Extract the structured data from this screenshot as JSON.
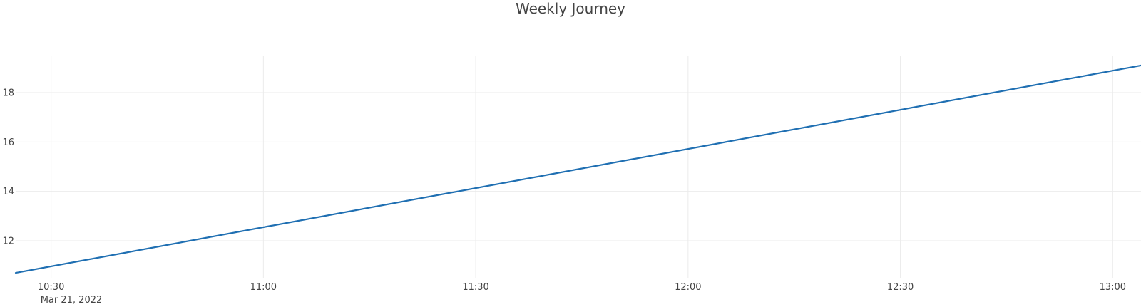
{
  "chart_data": {
    "type": "line",
    "title": "Weekly Journey",
    "xlabel": "",
    "ylabel": "",
    "x_type": "time",
    "x_ticks": [
      {
        "time": "10:30",
        "label": "10:30"
      },
      {
        "time": "11:00",
        "label": "11:00"
      },
      {
        "time": "11:30",
        "label": "11:30"
      },
      {
        "time": "12:00",
        "label": "12:00"
      },
      {
        "time": "12:30",
        "label": "12:30"
      },
      {
        "time": "13:00",
        "label": "13:00"
      }
    ],
    "x_date_label": "Mar 21, 2022",
    "y_ticks": [
      12,
      14,
      16,
      18
    ],
    "xlim": [
      "10:25",
      "13:04"
    ],
    "ylim": [
      10.5,
      19.5
    ],
    "grid": true,
    "legend": "none",
    "series": [
      {
        "color": "#1f6fb2",
        "x": [
          "10:25",
          "13:04"
        ],
        "y": [
          10.7,
          19.1
        ]
      }
    ]
  }
}
